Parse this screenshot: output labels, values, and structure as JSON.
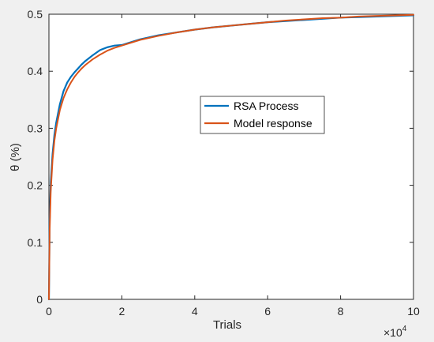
{
  "chart_data": {
    "type": "line",
    "title": "",
    "xlabel": "Trials",
    "ylabel": "θ (%)",
    "x_scale_exponent_label": "×10",
    "x_scale_exponent_power": "4",
    "xlim": [
      0,
      100000
    ],
    "ylim": [
      0,
      0.5
    ],
    "x_ticks": [
      0,
      20000,
      40000,
      60000,
      80000,
      100000
    ],
    "x_tick_labels": [
      "0",
      "2",
      "4",
      "6",
      "8",
      "10"
    ],
    "y_ticks": [
      0,
      0.1,
      0.2,
      0.3,
      0.4,
      0.5
    ],
    "y_tick_labels": [
      "0",
      "0.1",
      "0.2",
      "0.3",
      "0.4",
      "0.5"
    ],
    "grid": false,
    "legend_position": "center-right",
    "colors": {
      "RSA Process": "#0072BD",
      "Model response": "#D95319"
    },
    "series": [
      {
        "name": "RSA Process",
        "x": [
          0,
          200,
          500,
          1000,
          1500,
          2000,
          3000,
          4000,
          5000,
          6000,
          7000,
          8000,
          9000,
          10000,
          12000,
          14000,
          16000,
          18000,
          20000,
          25000,
          30000,
          35000,
          40000,
          45000,
          50000,
          55000,
          60000,
          65000,
          70000,
          75000,
          80000,
          85000,
          90000,
          95000,
          100000
        ],
        "values": [
          0,
          0.14,
          0.205,
          0.255,
          0.288,
          0.31,
          0.342,
          0.365,
          0.38,
          0.39,
          0.398,
          0.405,
          0.412,
          0.418,
          0.428,
          0.437,
          0.442,
          0.445,
          0.446,
          0.456,
          0.463,
          0.468,
          0.473,
          0.477,
          0.48,
          0.483,
          0.486,
          0.488,
          0.49,
          0.492,
          0.494,
          0.495,
          0.496,
          0.497,
          0.498
        ]
      },
      {
        "name": "Model response",
        "x": [
          0,
          200,
          500,
          1000,
          1500,
          2000,
          3000,
          4000,
          5000,
          6000,
          7000,
          8000,
          9000,
          10000,
          12000,
          14000,
          16000,
          18000,
          20000,
          25000,
          30000,
          35000,
          40000,
          45000,
          50000,
          55000,
          60000,
          65000,
          70000,
          75000,
          80000,
          85000,
          90000,
          95000,
          100000
        ],
        "values": [
          0,
          0.12,
          0.19,
          0.245,
          0.278,
          0.3,
          0.332,
          0.353,
          0.368,
          0.38,
          0.39,
          0.398,
          0.405,
          0.411,
          0.421,
          0.429,
          0.436,
          0.441,
          0.445,
          0.455,
          0.462,
          0.468,
          0.473,
          0.477,
          0.48,
          0.483,
          0.486,
          0.489,
          0.491,
          0.493,
          0.494,
          0.496,
          0.497,
          0.498,
          0.499
        ]
      }
    ]
  }
}
